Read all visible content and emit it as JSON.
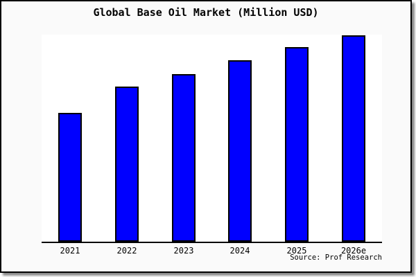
{
  "chart_data": {
    "type": "bar",
    "title": "Global Base Oil Market (Million USD)",
    "categories": [
      "2021",
      "2022",
      "2023",
      "2024",
      "2025",
      "2026e"
    ],
    "values": [
      62.7,
      75.3,
      81.3,
      88.0,
      94.3,
      100
    ],
    "value_unit": "relative magnitude (no y-axis, gridlines, or value labels shown; tallest bar = 100)",
    "xlabel": "",
    "ylabel": "",
    "ylim": [
      0,
      100
    ],
    "grid": false,
    "legend": null,
    "source_note": "Source: Prof Research",
    "colors": {
      "bar_fill": "#0000ff",
      "bar_border": "#000000",
      "canvas_background": "#fafafa",
      "plot_background": "#ffffff",
      "axis_line": "#000000",
      "text": "#000000",
      "frame_border": "#000000",
      "frame_shadow": "#888888"
    }
  }
}
